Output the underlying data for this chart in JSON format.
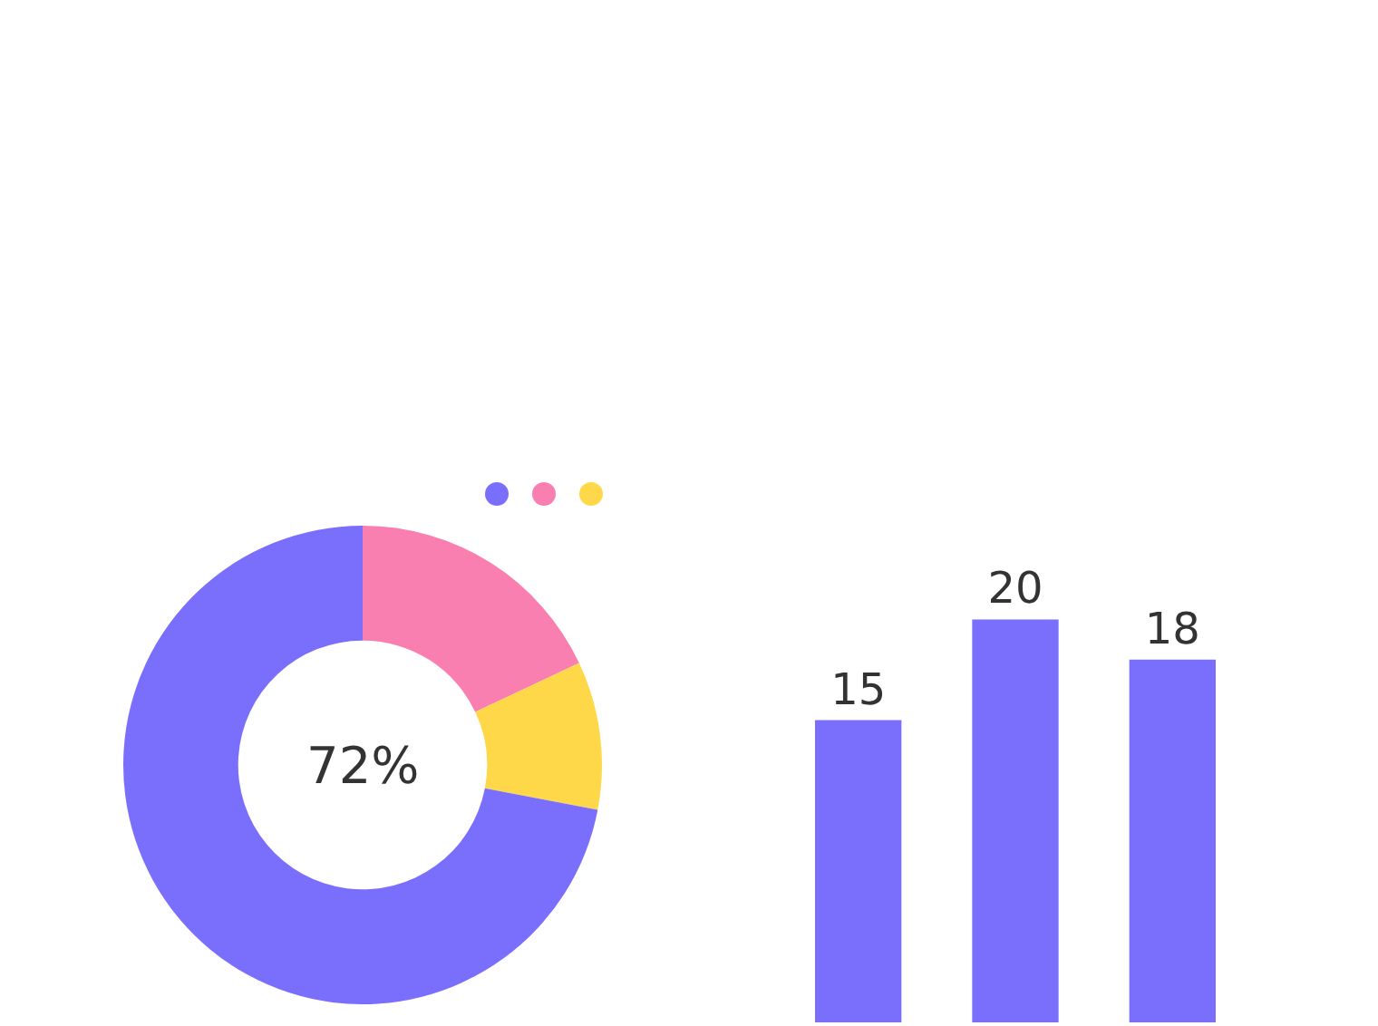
{
  "chart_data": [
    {
      "type": "donut",
      "categories": [
        null,
        null,
        null
      ],
      "values": [
        18,
        10,
        72
      ],
      "colors": [
        "#f97fb0",
        "#ffd84a",
        "#7a6ffd"
      ],
      "annotations": [
        "72%"
      ]
    },
    {
      "type": "bar",
      "categories": [
        null,
        null,
        null
      ],
      "values": [
        15,
        20,
        18
      ],
      "color": "#7a6ffd",
      "data_labels": true
    }
  ]
}
